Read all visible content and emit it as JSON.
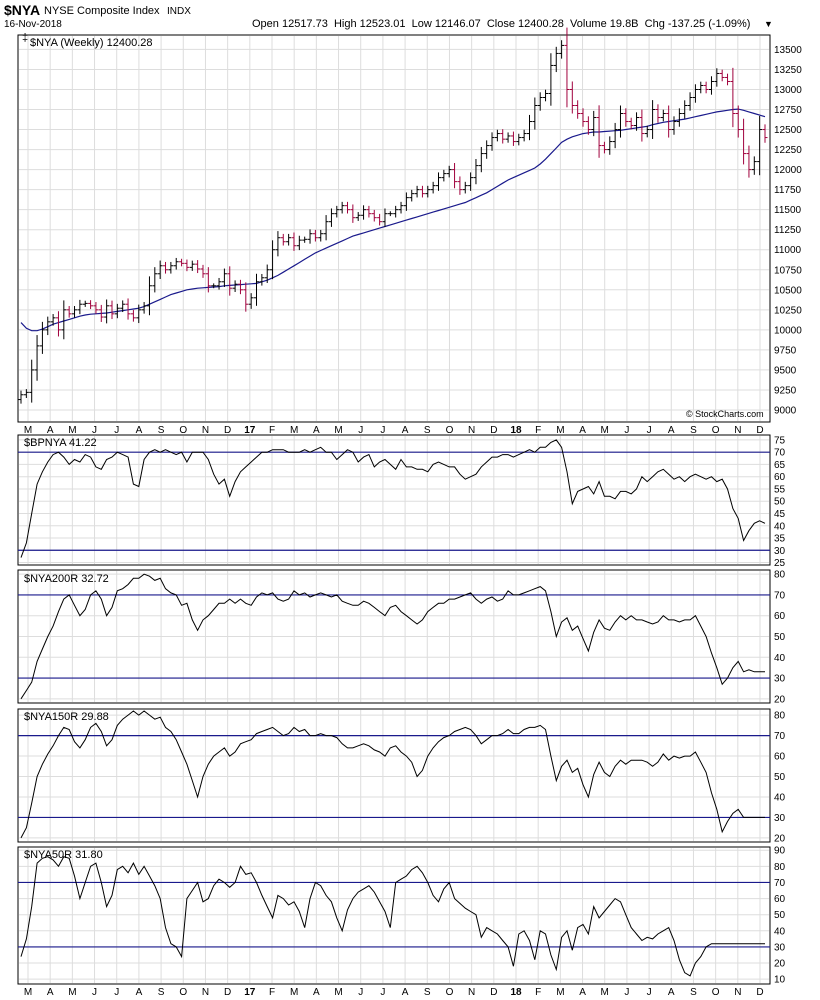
{
  "header": {
    "symbol": "$NYA",
    "name": "NYSE Composite Index",
    "exchange": "INDX",
    "date": "16-Nov-2018",
    "quote": "Open 12517.73  High 12523.01  Low 12146.07  Close 12400.28  Volume 19.8B  Chg -137.25 (-1.09%)",
    "change_marker": "▼",
    "copyright": "© StockCharts.com"
  },
  "colors": {
    "up": "#000000",
    "down": "#a0003c",
    "ma": "#1a1a8c",
    "level": "#1a1a8c",
    "indicator": "#000000"
  },
  "chart_data": [
    {
      "type": "line",
      "label": "$NYA (Weekly) 12400.28",
      "y_ticks": [
        9000,
        9250,
        9500,
        9750,
        10000,
        10250,
        10500,
        10750,
        11000,
        11250,
        11500,
        11750,
        12000,
        12250,
        12500,
        12750,
        13000,
        13250,
        13500
      ],
      "ylim": [
        8850,
        13680
      ],
      "price_closes": [
        9190,
        9220,
        9500,
        9800,
        10000,
        10100,
        10150,
        10000,
        10250,
        10200,
        10250,
        10320,
        10330,
        10300,
        10250,
        10160,
        10300,
        10200,
        10270,
        10320,
        10200,
        10150,
        10250,
        10300,
        10550,
        10700,
        10800,
        10750,
        10800,
        10850,
        10830,
        10780,
        10820,
        10760,
        10700,
        10550,
        10550,
        10600,
        10700,
        10520,
        10570,
        10500,
        10320,
        10400,
        10600,
        10650,
        10750,
        11000,
        11150,
        11100,
        11150,
        11050,
        11120,
        11130,
        11200,
        11150,
        11200,
        11350,
        11450,
        11500,
        11550,
        11500,
        11400,
        11430,
        11500,
        11450,
        11400,
        11350,
        11450,
        11450,
        11500,
        11550,
        11650,
        11700,
        11750,
        11700,
        11750,
        11800,
        11900,
        11950,
        12000,
        11850,
        11750,
        11800,
        11900,
        12050,
        12200,
        12300,
        12400,
        12450,
        12380,
        12420,
        12350,
        12400,
        12450,
        12600,
        12800,
        12900,
        12950,
        13300,
        13450,
        13550,
        13000,
        12800,
        12700,
        12600,
        12500,
        12650,
        12300,
        12250,
        12350,
        12500,
        12700,
        12600,
        12550,
        12650,
        12450,
        12500,
        12750,
        12650,
        12700,
        12500,
        12600,
        12700,
        12800,
        12900,
        13000,
        13050,
        13000,
        13100,
        13200,
        13150,
        13100,
        12700,
        12500,
        12200,
        12000,
        12100,
        12500,
        12400
      ],
      "ma_values": [
        10090,
        10020,
        9990,
        9990,
        10010,
        10040,
        10070,
        10090,
        10110,
        10130,
        10150,
        10170,
        10185,
        10195,
        10200,
        10205,
        10210,
        10220,
        10230,
        10240,
        10250,
        10260,
        10270,
        10290,
        10320,
        10350,
        10380,
        10410,
        10440,
        10460,
        10480,
        10500,
        10510,
        10520,
        10525,
        10530,
        10535,
        10540,
        10550,
        10555,
        10560,
        10565,
        10570,
        10575,
        10580,
        10600,
        10620,
        10650,
        10680,
        10720,
        10760,
        10800,
        10840,
        10880,
        10920,
        10960,
        10990,
        11020,
        11050,
        11080,
        11110,
        11140,
        11170,
        11190,
        11210,
        11230,
        11250,
        11270,
        11290,
        11310,
        11330,
        11350,
        11370,
        11390,
        11410,
        11430,
        11450,
        11470,
        11490,
        11510,
        11530,
        11550,
        11570,
        11590,
        11620,
        11650,
        11680,
        11710,
        11750,
        11790,
        11830,
        11870,
        11900,
        11930,
        11960,
        11990,
        12020,
        12070,
        12130,
        12200,
        12270,
        12340,
        12380,
        12410,
        12430,
        12450,
        12460,
        12470,
        12470,
        12475,
        12480,
        12485,
        12490,
        12500,
        12510,
        12520,
        12530,
        12540,
        12560,
        12575,
        12590,
        12600,
        12610,
        12620,
        12630,
        12645,
        12660,
        12675,
        12690,
        12705,
        12720,
        12730,
        12740,
        12750,
        12755,
        12740,
        12720,
        12700,
        12680,
        12660
      ],
      "x_labels": [
        "M",
        "A",
        "M",
        "J",
        "J",
        "A",
        "S",
        "O",
        "N",
        "D",
        "17",
        "F",
        "M",
        "A",
        "M",
        "J",
        "J",
        "A",
        "S",
        "O",
        "N",
        "D",
        "18",
        "F",
        "M",
        "A",
        "M",
        "J",
        "J",
        "A",
        "S",
        "O",
        "N",
        "D"
      ]
    },
    {
      "type": "line",
      "label": "$BPNYA 41.22",
      "y_ticks": [
        25,
        30,
        35,
        40,
        45,
        50,
        55,
        60,
        65,
        70,
        75
      ],
      "ylim": [
        24,
        77
      ],
      "levels": [
        30,
        70
      ],
      "values": [
        27,
        33,
        45,
        57,
        62,
        66,
        69,
        70,
        68,
        65,
        67,
        66,
        69,
        68,
        64,
        63,
        67,
        68,
        70,
        69,
        68,
        57,
        56,
        67,
        70,
        71,
        70,
        71,
        70,
        69,
        70,
        66,
        70,
        70,
        70,
        67,
        61,
        57,
        59,
        52,
        58,
        62,
        64,
        66,
        68,
        70,
        70,
        71,
        71,
        71,
        70,
        70,
        70,
        71,
        70,
        71,
        72,
        70,
        70,
        67,
        69,
        71,
        70,
        66,
        68,
        69,
        64,
        66,
        67,
        65,
        63,
        67,
        64,
        64,
        63,
        63,
        62,
        65,
        66,
        65,
        64,
        64,
        61,
        59,
        60,
        61,
        64,
        66,
        68,
        68,
        69,
        69,
        68,
        69,
        70,
        71,
        70,
        72,
        72,
        74,
        75,
        72,
        62,
        49,
        54,
        55,
        56,
        53,
        58,
        52,
        52,
        51,
        54,
        54,
        53,
        55,
        60,
        58,
        60,
        62,
        63,
        61,
        59,
        60,
        58,
        60,
        61,
        60,
        59,
        60,
        58,
        59,
        55,
        47,
        43,
        34,
        38,
        41,
        42,
        41
      ]
    },
    {
      "type": "line",
      "label": "$NYA200R 32.72",
      "y_ticks": [
        20,
        30,
        40,
        50,
        60,
        70,
        80
      ],
      "ylim": [
        18,
        82
      ],
      "levels": [
        30,
        70
      ],
      "values": [
        20,
        24,
        28,
        38,
        44,
        50,
        55,
        62,
        68,
        70,
        65,
        60,
        63,
        70,
        72,
        68,
        60,
        64,
        72,
        73,
        75,
        78,
        78,
        80,
        79,
        77,
        78,
        73,
        71,
        70,
        65,
        66,
        58,
        53,
        58,
        60,
        63,
        66,
        66,
        68,
        66,
        68,
        66,
        65,
        69,
        71,
        70,
        71,
        68,
        67,
        68,
        72,
        70,
        71,
        69,
        70,
        71,
        70,
        69,
        70,
        67,
        66,
        65,
        65,
        67,
        66,
        64,
        62,
        60,
        64,
        65,
        62,
        60,
        58,
        56,
        58,
        62,
        64,
        66,
        66,
        68,
        68,
        69,
        70,
        71,
        68,
        66,
        68,
        69,
        67,
        68,
        72,
        70,
        70,
        71,
        72,
        73,
        74,
        72,
        62,
        50,
        57,
        59,
        53,
        55,
        49,
        43,
        52,
        58,
        54,
        53,
        57,
        60,
        58,
        60,
        58,
        58,
        57,
        56,
        57,
        60,
        58,
        58,
        57,
        58,
        58,
        60,
        55,
        50,
        42,
        35,
        27,
        30,
        35,
        38,
        33,
        34,
        33,
        33,
        33
      ]
    },
    {
      "type": "line",
      "label": "$NYA150R 29.88",
      "y_ticks": [
        20,
        30,
        40,
        50,
        60,
        70,
        80
      ],
      "ylim": [
        18,
        83
      ],
      "levels": [
        30,
        70
      ],
      "values": [
        20,
        25,
        37,
        50,
        56,
        61,
        65,
        70,
        74,
        73,
        67,
        64,
        68,
        74,
        76,
        72,
        65,
        68,
        75,
        78,
        80,
        82,
        80,
        82,
        80,
        78,
        79,
        74,
        72,
        68,
        62,
        56,
        48,
        40,
        50,
        56,
        60,
        62,
        64,
        60,
        62,
        66,
        67,
        68,
        71,
        72,
        73,
        74,
        72,
        70,
        71,
        74,
        72,
        73,
        70,
        70,
        71,
        70,
        70,
        69,
        66,
        64,
        64,
        65,
        66,
        65,
        63,
        62,
        60,
        64,
        65,
        62,
        60,
        57,
        50,
        53,
        60,
        64,
        67,
        69,
        70,
        72,
        73,
        74,
        73,
        70,
        66,
        68,
        70,
        70,
        71,
        73,
        71,
        71,
        73,
        74,
        74,
        75,
        73,
        60,
        48,
        55,
        58,
        52,
        54,
        46,
        40,
        51,
        57,
        52,
        50,
        55,
        58,
        56,
        58,
        58,
        58,
        57,
        55,
        57,
        61,
        58,
        60,
        59,
        60,
        60,
        62,
        57,
        52,
        42,
        34,
        23,
        28,
        32,
        34,
        30,
        30,
        30,
        30,
        30
      ]
    },
    {
      "type": "line",
      "label": "$NYA50R 31.80",
      "y_ticks": [
        10,
        20,
        30,
        40,
        50,
        60,
        70,
        80,
        90
      ],
      "ylim": [
        7,
        92
      ],
      "levels": [
        30,
        70
      ],
      "values": [
        24,
        35,
        55,
        82,
        85,
        86,
        84,
        80,
        86,
        85,
        74,
        60,
        70,
        80,
        82,
        70,
        55,
        62,
        78,
        80,
        76,
        82,
        75,
        80,
        74,
        68,
        60,
        42,
        32,
        30,
        24,
        60,
        65,
        70,
        58,
        60,
        68,
        72,
        70,
        67,
        70,
        80,
        75,
        76,
        70,
        62,
        55,
        48,
        62,
        60,
        56,
        58,
        52,
        42,
        60,
        70,
        68,
        62,
        58,
        48,
        40,
        53,
        60,
        64,
        66,
        68,
        64,
        58,
        52,
        42,
        70,
        72,
        74,
        78,
        80,
        76,
        70,
        62,
        58,
        66,
        70,
        60,
        57,
        54,
        52,
        50,
        36,
        42,
        40,
        38,
        34,
        30,
        18,
        38,
        40,
        34,
        22,
        40,
        38,
        25,
        16,
        36,
        40,
        28,
        42,
        44,
        38,
        55,
        48,
        52,
        56,
        60,
        58,
        50,
        42,
        38,
        34,
        36,
        35,
        38,
        40,
        42,
        34,
        22,
        14,
        12,
        20,
        24,
        30,
        32,
        32,
        32,
        32,
        32,
        32,
        32,
        32,
        32,
        32,
        32
      ]
    }
  ]
}
